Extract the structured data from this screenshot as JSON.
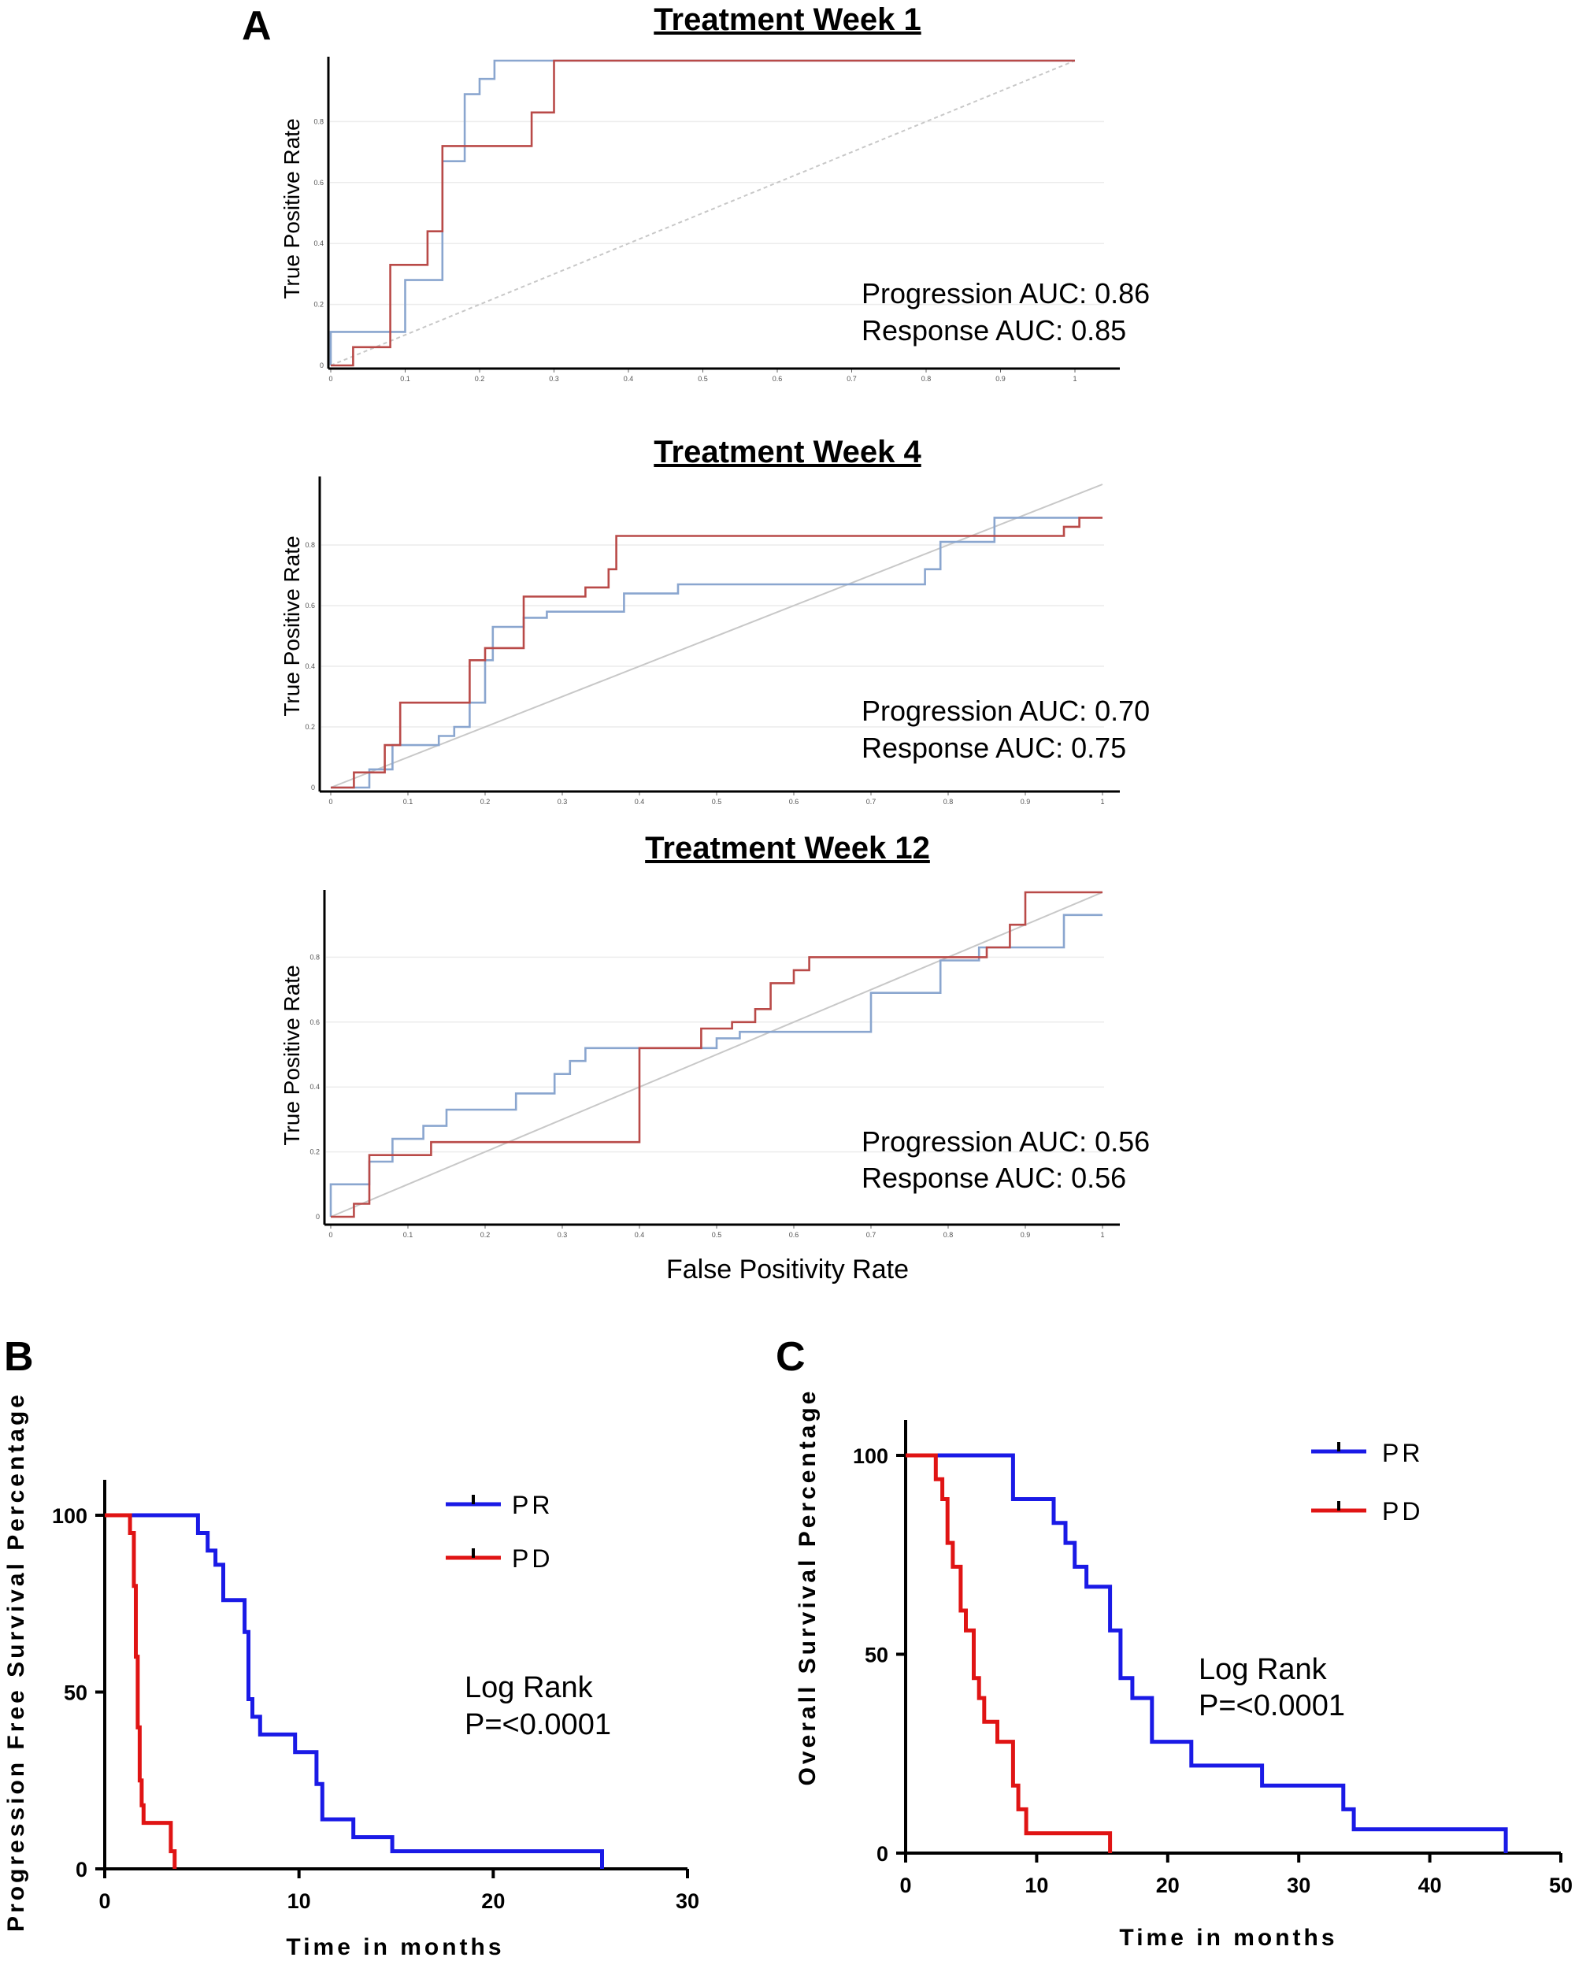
{
  "panel_a": {
    "letter": "A",
    "ylabel": "True Positive Rate",
    "xlabel": "False Positivity Rate"
  },
  "panel_b": {
    "letter": "B"
  },
  "panel_c": {
    "letter": "C"
  },
  "colors": {
    "progression": "#b94a48",
    "response": "#8aa6cf",
    "diagonal": "#c8c8c8",
    "pr": "#1a1ae6",
    "pd": "#e01414"
  },
  "chart_data": [
    {
      "type": "line",
      "title": "Treatment Week 1",
      "xlim": [
        0,
        1
      ],
      "ylim": [
        0,
        1
      ],
      "x_ticks": [
        "0",
        "0.1",
        "0.2",
        "0.3",
        "0.4",
        "0.5",
        "0.6",
        "0.7",
        "0.8",
        "0.9",
        "1"
      ],
      "y_ticks": [
        "0",
        "0.2",
        "0.4",
        "0.6",
        "0.8"
      ],
      "annotations": [
        "Progression AUC: 0.86",
        "Response AUC: 0.85"
      ],
      "series": [
        {
          "x": [
            0,
            0,
            0.1,
            0.1,
            0.15,
            0.15,
            0.18,
            0.18,
            0.2,
            0.2,
            0.22,
            0.22,
            0.3,
            0.3,
            1
          ],
          "y": [
            0,
            0.11,
            0.11,
            0.28,
            0.28,
            0.67,
            0.67,
            0.89,
            0.89,
            0.94,
            0.94,
            1,
            1,
            1,
            1
          ]
        },
        {
          "x": [
            0,
            0.03,
            0.03,
            0.08,
            0.08,
            0.13,
            0.13,
            0.15,
            0.15,
            0.27,
            0.27,
            0.3,
            0.3,
            1
          ],
          "y": [
            0,
            0,
            0.06,
            0.06,
            0.33,
            0.33,
            0.44,
            0.44,
            0.72,
            0.72,
            0.83,
            0.83,
            1,
            1
          ]
        }
      ]
    },
    {
      "type": "line",
      "title": "Treatment Week 4",
      "xlim": [
        0,
        1
      ],
      "ylim": [
        0,
        1
      ],
      "x_ticks": [
        "0",
        "0.1",
        "0.2",
        "0.3",
        "0.4",
        "0.5",
        "0.6",
        "0.7",
        "0.8",
        "0.9",
        "1"
      ],
      "y_ticks": [
        "0",
        "0.2",
        "0.4",
        "0.6",
        "0.8"
      ],
      "annotations": [
        "Progression AUC: 0.70",
        "Response AUC: 0.75"
      ],
      "series": [
        {
          "x": [
            0,
            0.05,
            0.05,
            0.08,
            0.08,
            0.14,
            0.14,
            0.16,
            0.16,
            0.18,
            0.18,
            0.2,
            0.2,
            0.21,
            0.21,
            0.25,
            0.25,
            0.28,
            0.28,
            0.38,
            0.38,
            0.45,
            0.45,
            0.77,
            0.77,
            0.79,
            0.79,
            0.86,
            0.86,
            0.97
          ],
          "y": [
            0,
            0,
            0.06,
            0.06,
            0.14,
            0.14,
            0.17,
            0.17,
            0.2,
            0.2,
            0.28,
            0.28,
            0.42,
            0.42,
            0.53,
            0.53,
            0.56,
            0.56,
            0.58,
            0.58,
            0.64,
            0.64,
            0.67,
            0.67,
            0.72,
            0.72,
            0.81,
            0.81,
            0.89,
            0.89
          ]
        },
        {
          "x": [
            0,
            0.03,
            0.03,
            0.07,
            0.07,
            0.09,
            0.09,
            0.18,
            0.18,
            0.2,
            0.2,
            0.25,
            0.25,
            0.33,
            0.33,
            0.36,
            0.36,
            0.37,
            0.37,
            0.38,
            0.38,
            0.95,
            0.95,
            0.97,
            0.97,
            1
          ],
          "y": [
            0,
            0,
            0.05,
            0.05,
            0.14,
            0.14,
            0.28,
            0.28,
            0.42,
            0.42,
            0.46,
            0.46,
            0.63,
            0.63,
            0.66,
            0.66,
            0.72,
            0.72,
            0.83,
            0.83,
            0.83,
            0.83,
            0.86,
            0.86,
            0.89,
            0.89
          ]
        }
      ]
    },
    {
      "type": "line",
      "title": "Treatment Week 12",
      "xlim": [
        0,
        1
      ],
      "ylim": [
        0,
        1
      ],
      "x_ticks": [
        "0",
        "0.1",
        "0.2",
        "0.3",
        "0.4",
        "0.5",
        "0.6",
        "0.7",
        "0.8",
        "0.9",
        "1"
      ],
      "y_ticks": [
        "0",
        "0.2",
        "0.4",
        "0.6",
        "0.8"
      ],
      "annotations": [
        "Progression AUC: 0.56",
        "Response AUC: 0.56"
      ],
      "series": [
        {
          "x": [
            0,
            0,
            0.05,
            0.05,
            0.08,
            0.08,
            0.12,
            0.12,
            0.15,
            0.15,
            0.24,
            0.24,
            0.29,
            0.29,
            0.31,
            0.31,
            0.33,
            0.33,
            0.5,
            0.5,
            0.53,
            0.53,
            0.7,
            0.7,
            0.79,
            0.79,
            0.84,
            0.84,
            0.95,
            0.95,
            1
          ],
          "y": [
            0,
            0.1,
            0.1,
            0.17,
            0.17,
            0.24,
            0.24,
            0.28,
            0.28,
            0.33,
            0.33,
            0.38,
            0.38,
            0.44,
            0.44,
            0.48,
            0.48,
            0.52,
            0.52,
            0.55,
            0.55,
            0.57,
            0.57,
            0.69,
            0.69,
            0.79,
            0.79,
            0.83,
            0.83,
            0.93,
            0.93
          ]
        },
        {
          "x": [
            0,
            0.03,
            0.03,
            0.05,
            0.05,
            0.13,
            0.13,
            0.4,
            0.4,
            0.48,
            0.48,
            0.52,
            0.52,
            0.55,
            0.55,
            0.57,
            0.57,
            0.6,
            0.6,
            0.62,
            0.62,
            0.85,
            0.85,
            0.88,
            0.88,
            0.9,
            0.9,
            1
          ],
          "y": [
            0,
            0,
            0.04,
            0.04,
            0.19,
            0.19,
            0.23,
            0.23,
            0.52,
            0.52,
            0.58,
            0.58,
            0.6,
            0.6,
            0.64,
            0.64,
            0.72,
            0.72,
            0.76,
            0.76,
            0.8,
            0.8,
            0.83,
            0.83,
            0.9,
            0.9,
            1,
            1
          ]
        }
      ]
    },
    {
      "type": "line",
      "xlabel": "Time in months",
      "ylabel": "Progression Free Survival Percentage",
      "xlim": [
        0,
        30
      ],
      "ylim": [
        0,
        100
      ],
      "x_ticks": [
        "0",
        "10",
        "20",
        "30"
      ],
      "y_ticks": [
        "0",
        "50",
        "100"
      ],
      "legend_position": "top-right",
      "annotations": [
        "Log Rank",
        "P=<0.0001"
      ],
      "series": [
        {
          "name": "PR",
          "x": [
            0,
            4.8,
            4.8,
            5.3,
            5.3,
            5.7,
            5.7,
            6.1,
            6.1,
            7.2,
            7.2,
            7.4,
            7.4,
            7.6,
            7.6,
            8.0,
            8.0,
            9.8,
            9.8,
            10.9,
            10.9,
            11.2,
            11.2,
            12.8,
            12.8,
            14.8,
            14.8,
            25.6,
            25.6
          ],
          "y": [
            100,
            100,
            95,
            95,
            90,
            90,
            86,
            86,
            76,
            76,
            67,
            67,
            48,
            48,
            43,
            43,
            38,
            38,
            33,
            33,
            24,
            24,
            14,
            14,
            9,
            9,
            5,
            5,
            0
          ]
        },
        {
          "name": "PD",
          "x": [
            0,
            1.3,
            1.3,
            1.5,
            1.5,
            1.6,
            1.6,
            1.7,
            1.7,
            1.8,
            1.8,
            1.9,
            1.9,
            2.0,
            2.0,
            3.4,
            3.4,
            3.6,
            3.6
          ],
          "y": [
            100,
            100,
            95,
            95,
            80,
            80,
            60,
            60,
            40,
            40,
            25,
            25,
            18,
            18,
            13,
            13,
            5,
            5,
            0
          ]
        }
      ]
    },
    {
      "type": "line",
      "xlabel": "Time in months",
      "ylabel": "Overall Survival Percentage",
      "xlim": [
        0,
        50
      ],
      "ylim": [
        0,
        100
      ],
      "x_ticks": [
        "0",
        "10",
        "20",
        "30",
        "40",
        "50"
      ],
      "y_ticks": [
        "0",
        "50",
        "100"
      ],
      "legend_position": "top-right",
      "annotations": [
        "Log Rank",
        "P=<0.0001"
      ],
      "series": [
        {
          "name": "PR",
          "x": [
            0,
            8.2,
            8.2,
            11.3,
            11.3,
            12.2,
            12.2,
            12.9,
            12.9,
            13.8,
            13.8,
            15.6,
            15.6,
            16.4,
            16.4,
            17.3,
            17.3,
            18.8,
            18.8,
            21.8,
            21.8,
            27.2,
            27.2,
            33.4,
            33.4,
            34.2,
            34.2,
            45.8,
            45.8
          ],
          "y": [
            100,
            100,
            89,
            89,
            83,
            83,
            78,
            78,
            72,
            72,
            67,
            67,
            56,
            56,
            44,
            44,
            39,
            39,
            28,
            28,
            22,
            22,
            17,
            17,
            11,
            11,
            6,
            6,
            0
          ]
        },
        {
          "name": "PD",
          "x": [
            0,
            2.3,
            2.3,
            2.8,
            2.8,
            3.2,
            3.2,
            3.6,
            3.6,
            4.2,
            4.2,
            4.6,
            4.6,
            5.2,
            5.2,
            5.6,
            5.6,
            6.0,
            6.0,
            7.0,
            7.0,
            8.2,
            8.2,
            8.6,
            8.6,
            9.2,
            9.2,
            10.6,
            10.6,
            15.6,
            15.6
          ],
          "y": [
            100,
            100,
            94,
            94,
            89,
            89,
            78,
            78,
            72,
            72,
            61,
            61,
            56,
            56,
            44,
            44,
            39,
            39,
            33,
            33,
            28,
            28,
            17,
            17,
            11,
            11,
            5,
            5,
            5,
            5,
            0
          ]
        }
      ]
    }
  ]
}
